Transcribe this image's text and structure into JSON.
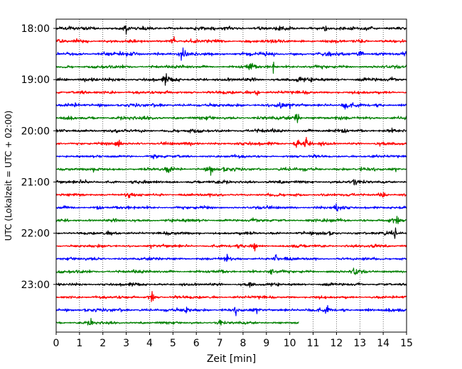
{
  "chart_data": {
    "type": "line",
    "title": "",
    "xlabel": "Zeit  [min]",
    "ylabel": "UTC (Lokalzeit = UTC + 02:00)",
    "xlim": [
      0,
      15
    ],
    "x_ticks": [
      0,
      1,
      2,
      3,
      4,
      5,
      6,
      7,
      8,
      9,
      10,
      11,
      12,
      13,
      14,
      15
    ],
    "x_tick_labels": [
      "0",
      "1",
      "2",
      "3",
      "4",
      "5",
      "6",
      "7",
      "8",
      "9",
      "10",
      "11",
      "12",
      "13",
      "14",
      "15"
    ],
    "y_tick_labels": [
      "18:00",
      "19:00",
      "20:00",
      "21:00",
      "22:00",
      "23:00"
    ],
    "y_tick_trace_index": [
      0,
      4,
      8,
      12,
      16,
      20
    ],
    "trace_minutes": 15,
    "grid": "vertical dotted at each minute",
    "color_cycle": [
      "#000000",
      "#ff0000",
      "#0000ff",
      "#008000"
    ],
    "series": [
      {
        "start": "18:00",
        "end_min": 15,
        "color": "#000000",
        "amp": 3.2,
        "events": [
          [
            3.0,
            6
          ],
          [
            11.5,
            6
          ]
        ]
      },
      {
        "start": "18:15",
        "end_min": 15,
        "color": "#ff0000",
        "amp": 3.0,
        "events": [
          [
            5.0,
            7
          ]
        ]
      },
      {
        "start": "18:30",
        "end_min": 15,
        "color": "#0000ff",
        "amp": 3.2,
        "events": [
          [
            5.4,
            8
          ],
          [
            13.0,
            6
          ]
        ]
      },
      {
        "start": "18:45",
        "end_min": 15,
        "color": "#008000",
        "amp": 2.8,
        "events": [
          [
            8.3,
            8
          ],
          [
            9.3,
            6
          ]
        ]
      },
      {
        "start": "19:00",
        "end_min": 15,
        "color": "#000000",
        "amp": 3.2,
        "events": [
          [
            4.7,
            7
          ],
          [
            10.4,
            6
          ]
        ]
      },
      {
        "start": "19:15",
        "end_min": 15,
        "color": "#ff0000",
        "amp": 2.8,
        "events": [
          [
            8.6,
            5
          ]
        ]
      },
      {
        "start": "19:30",
        "end_min": 15,
        "color": "#0000ff",
        "amp": 3.0,
        "events": [
          [
            9.6,
            7
          ],
          [
            12.4,
            10
          ]
        ]
      },
      {
        "start": "19:45",
        "end_min": 15,
        "color": "#008000",
        "amp": 3.0,
        "events": [
          [
            10.3,
            9
          ]
        ]
      },
      {
        "start": "20:00",
        "end_min": 15,
        "color": "#000000",
        "amp": 3.0,
        "events": [
          [
            12.3,
            6
          ]
        ]
      },
      {
        "start": "20:15",
        "end_min": 15,
        "color": "#ff0000",
        "amp": 2.8,
        "events": [
          [
            2.7,
            6
          ],
          [
            10.3,
            10
          ],
          [
            10.7,
            10
          ]
        ]
      },
      {
        "start": "20:30",
        "end_min": 15,
        "color": "#0000ff",
        "amp": 2.4,
        "events": [
          [
            4.2,
            5
          ]
        ]
      },
      {
        "start": "20:45",
        "end_min": 15,
        "color": "#008000",
        "amp": 3.0,
        "events": [
          [
            6.6,
            7
          ],
          [
            4.8,
            5
          ]
        ]
      },
      {
        "start": "21:00",
        "end_min": 15,
        "color": "#000000",
        "amp": 2.8,
        "events": [
          [
            12.8,
            6
          ]
        ]
      },
      {
        "start": "21:15",
        "end_min": 15,
        "color": "#ff0000",
        "amp": 2.6,
        "events": [
          [
            3.1,
            6
          ],
          [
            14.0,
            5
          ]
        ]
      },
      {
        "start": "21:30",
        "end_min": 15,
        "color": "#0000ff",
        "amp": 2.6,
        "events": [
          [
            1.8,
            6
          ],
          [
            12.0,
            6
          ]
        ]
      },
      {
        "start": "21:45",
        "end_min": 15,
        "color": "#008000",
        "amp": 2.8,
        "events": [
          [
            14.6,
            5
          ]
        ]
      },
      {
        "start": "22:00",
        "end_min": 15,
        "color": "#000000",
        "amp": 2.8,
        "events": [
          [
            14.5,
            7
          ]
        ]
      },
      {
        "start": "22:15",
        "end_min": 15,
        "color": "#ff0000",
        "amp": 2.6,
        "events": [
          [
            8.5,
            7
          ]
        ]
      },
      {
        "start": "22:30",
        "end_min": 15,
        "color": "#0000ff",
        "amp": 2.6,
        "events": [
          [
            7.3,
            5
          ],
          [
            9.4,
            7
          ]
        ]
      },
      {
        "start": "22:45",
        "end_min": 15,
        "color": "#008000",
        "amp": 2.8,
        "events": [
          [
            12.8,
            6
          ],
          [
            9.2,
            5
          ]
        ]
      },
      {
        "start": "23:00",
        "end_min": 15,
        "color": "#000000",
        "amp": 2.6,
        "events": [
          [
            8.3,
            5
          ]
        ]
      },
      {
        "start": "23:15",
        "end_min": 15,
        "color": "#ff0000",
        "amp": 2.6,
        "events": [
          [
            4.1,
            9
          ]
        ]
      },
      {
        "start": "23:30",
        "end_min": 15,
        "color": "#0000ff",
        "amp": 3.0,
        "events": [
          [
            5.6,
            6
          ],
          [
            7.7,
            5
          ],
          [
            11.6,
            5
          ]
        ]
      },
      {
        "start": "23:45",
        "end_min": 10.4,
        "color": "#008000",
        "amp": 2.4,
        "events": [
          [
            1.5,
            5
          ],
          [
            7.0,
            6
          ]
        ]
      }
    ]
  }
}
